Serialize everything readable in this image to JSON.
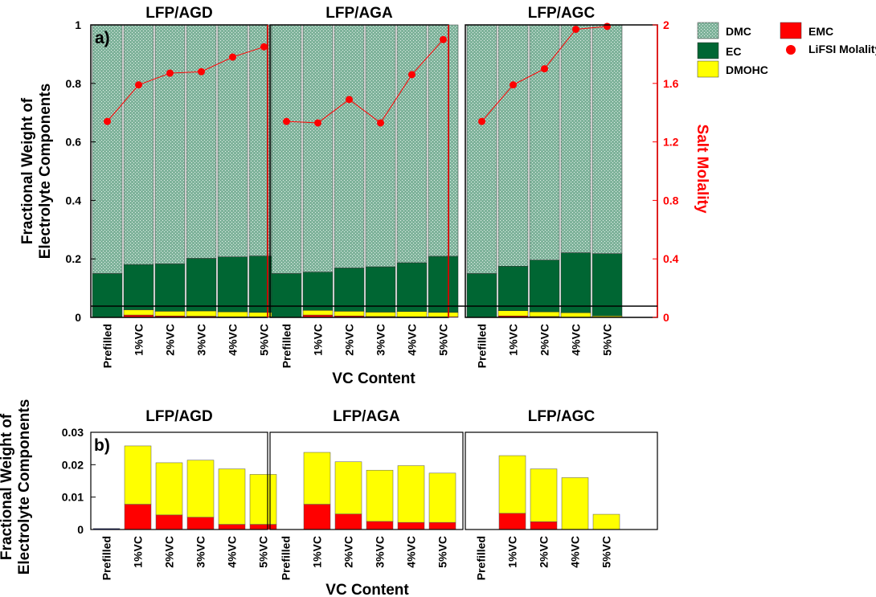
{
  "colors": {
    "DMC": "#7fb39b",
    "EC": "#006633",
    "DMOHC": "#ffff00",
    "EMC": "#ff0000",
    "LiFSI Molality": "#ff0000",
    "prefilled_small": "#1c2aa0",
    "right_axis": "#ff0000"
  },
  "chart_data": [
    {
      "id": "a",
      "type": "bar",
      "panel_label": "a)",
      "stacked": true,
      "xlabel": "VC Content",
      "ylabel_lines": [
        "Fractional Weight of",
        "Electrolyte Components"
      ],
      "ylim": [
        0,
        1
      ],
      "yticks": [
        "0",
        "0.2",
        "0.4",
        "0.6",
        "0.8",
        "1"
      ],
      "ytick_values": [
        0,
        0.2,
        0.4,
        0.6,
        0.8,
        1
      ],
      "y2label": "Salt Molality",
      "y2lim": [
        0,
        2
      ],
      "y2ticks": [
        "0",
        "0.4",
        "0.8",
        "1.2",
        "1.6",
        "2"
      ],
      "y2tick_values": [
        0,
        0.4,
        0.8,
        1.2,
        1.6,
        2
      ],
      "legend": {
        "position": "right",
        "entries": [
          "DMC",
          "EC",
          "DMOHC",
          "EMC",
          "LiFSI Molality"
        ]
      },
      "panels": [
        {
          "title": "LFP/AGD",
          "categories": [
            "Prefilled",
            "1%VC",
            "2%VC",
            "3%VC",
            "4%VC",
            "5%VC"
          ],
          "series": [
            {
              "name": "EMC",
              "values": [
                0,
                0.008,
                0.005,
                0.004,
                0.002,
                0.002
              ]
            },
            {
              "name": "DMOHC",
              "values": [
                0,
                0.018,
                0.016,
                0.018,
                0.017,
                0.015
              ]
            },
            {
              "name": "EC",
              "values": [
                0.15,
                0.155,
                0.162,
                0.18,
                0.188,
                0.193
              ]
            },
            {
              "name": "DMC",
              "values": [
                0.85,
                0.819,
                0.817,
                0.798,
                0.793,
                0.79
              ]
            }
          ],
          "molality": [
            1.34,
            1.59,
            1.67,
            1.68,
            1.78,
            1.85
          ]
        },
        {
          "title": "LFP/AGA",
          "categories": [
            "Prefilled",
            "1%VC",
            "2%VC",
            "3%VC",
            "4%VC",
            "5%VC"
          ],
          "series": [
            {
              "name": "EMC",
              "values": [
                0,
                0.008,
                0.005,
                0.003,
                0.002,
                0.002
              ]
            },
            {
              "name": "DMOHC",
              "values": [
                0,
                0.016,
                0.016,
                0.015,
                0.018,
                0.015
              ]
            },
            {
              "name": "EC",
              "values": [
                0.15,
                0.131,
                0.148,
                0.155,
                0.167,
                0.192
              ]
            },
            {
              "name": "DMC",
              "values": [
                0.85,
                0.845,
                0.831,
                0.827,
                0.813,
                0.791
              ]
            }
          ],
          "molality": [
            1.34,
            1.33,
            1.49,
            1.33,
            1.66,
            1.9
          ]
        },
        {
          "title": "LFP/AGC",
          "categories": [
            "Prefilled",
            "1%VC",
            "2%VC",
            "4%VC",
            "5%VC"
          ],
          "series": [
            {
              "name": "EMC",
              "values": [
                0,
                0.005,
                0.003,
                0,
                0
              ]
            },
            {
              "name": "DMOHC",
              "values": [
                0,
                0.018,
                0.016,
                0.016,
                0.005
              ]
            },
            {
              "name": "EC",
              "values": [
                0.15,
                0.152,
                0.177,
                0.205,
                0.213
              ]
            },
            {
              "name": "DMC",
              "values": [
                0.85,
                0.825,
                0.804,
                0.779,
                0.782
              ]
            }
          ],
          "molality": [
            1.34,
            1.59,
            1.7,
            1.97,
            1.99
          ]
        }
      ]
    },
    {
      "id": "b",
      "type": "bar",
      "panel_label": "b)",
      "stacked": true,
      "xlabel": "VC Content",
      "ylabel_lines": [
        "Fractional Weight of",
        "Electrolyte Components"
      ],
      "ylim": [
        0,
        0.03
      ],
      "yticks": [
        "0",
        "0.01",
        "0.02",
        "0.03"
      ],
      "ytick_values": [
        0,
        0.01,
        0.02,
        0.03
      ],
      "panels": [
        {
          "title": "LFP/AGD",
          "categories": [
            "Prefilled",
            "1%VC",
            "2%VC",
            "3%VC",
            "4%VC",
            "5%VC"
          ],
          "series": [
            {
              "name": "EMC",
              "values": [
                0.0003,
                0.0078,
                0.0045,
                0.0038,
                0.0016,
                0.0016
              ]
            },
            {
              "name": "DMOHC",
              "values": [
                0,
                0.018,
                0.0161,
                0.0176,
                0.0171,
                0.0154
              ]
            }
          ]
        },
        {
          "title": "LFP/AGA",
          "categories": [
            "Prefilled",
            "1%VC",
            "2%VC",
            "3%VC",
            "4%VC",
            "5%VC"
          ],
          "series": [
            {
              "name": "EMC",
              "values": [
                0,
                0.0078,
                0.0048,
                0.0025,
                0.0022,
                0.0022
              ]
            },
            {
              "name": "DMOHC",
              "values": [
                0,
                0.016,
                0.0161,
                0.0158,
                0.0175,
                0.0152
              ]
            }
          ]
        },
        {
          "title": "LFP/AGC",
          "categories": [
            "Prefilled",
            "1%VC",
            "2%VC",
            "4%VC",
            "5%VC"
          ],
          "series": [
            {
              "name": "EMC",
              "values": [
                0,
                0.005,
                0.0024,
                0,
                0
              ]
            },
            {
              "name": "DMOHC",
              "values": [
                0,
                0.0178,
                0.0163,
                0.016,
                0.0047
              ]
            }
          ]
        }
      ]
    }
  ]
}
